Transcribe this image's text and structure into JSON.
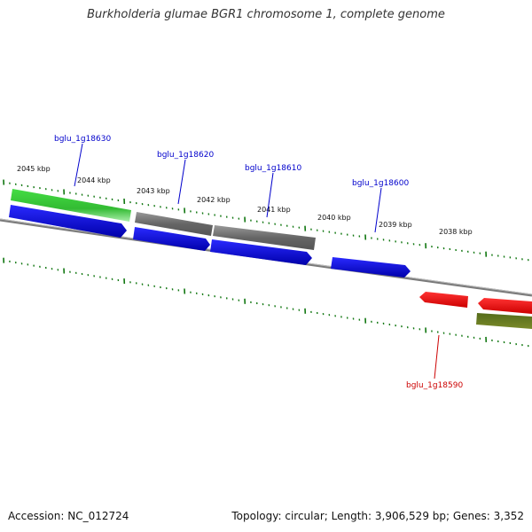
{
  "title": "Burkholderia glumae BGR1 chromosome 1, complete genome",
  "footer": {
    "accession": "Accession: NC_012724",
    "summary": "Topology: circular; Length: 3,906,529 bp; Genes: 3,352"
  },
  "ticks": {
    "labels": [
      "2045 kbp",
      "2044 kbp",
      "2043 kbp",
      "2042 kbp",
      "2041 kbp",
      "2040 kbp",
      "2039 kbp",
      "2038 kbp"
    ]
  },
  "genes": {
    "labels": [
      "bglu_1g18630",
      "bglu_1g18620",
      "bglu_1g18610",
      "bglu_1g18600",
      "bglu_1g18590"
    ],
    "colors": {
      "forward_label": "#0000cc",
      "reverse_label": "#cc0000",
      "cds_blue": "#0000ee",
      "gene_green": "#33cc33",
      "gene_grey": "#666666",
      "gene_red": "#ee0000",
      "gene_olive": "#667a1a",
      "tick_green": "#117711",
      "backbone": "#888888"
    }
  }
}
